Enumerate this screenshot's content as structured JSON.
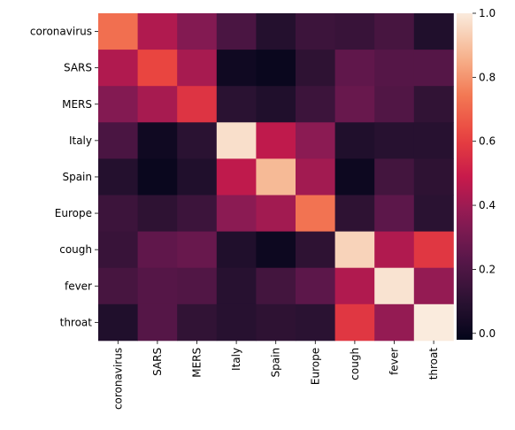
{
  "chart_data": {
    "type": "heatmap",
    "title": "",
    "xlabel": "",
    "ylabel": "",
    "x_labels": [
      "coronavirus",
      "SARS",
      "MERS",
      "Italy",
      "Spain",
      "Europe",
      "cough",
      "fever",
      "throat"
    ],
    "y_labels": [
      "coronavirus",
      "SARS",
      "MERS",
      "Italy",
      "Spain",
      "Europe",
      "cough",
      "fever",
      "throat"
    ],
    "values": [
      [
        0.72,
        0.44,
        0.34,
        0.19,
        0.08,
        0.15,
        0.14,
        0.18,
        0.07
      ],
      [
        0.44,
        0.62,
        0.42,
        0.02,
        0.0,
        0.11,
        0.25,
        0.22,
        0.22
      ],
      [
        0.34,
        0.42,
        0.57,
        0.1,
        0.07,
        0.15,
        0.27,
        0.21,
        0.12
      ],
      [
        0.19,
        0.02,
        0.1,
        0.97,
        0.47,
        0.36,
        0.07,
        0.09,
        0.09
      ],
      [
        0.08,
        0.0,
        0.07,
        0.47,
        0.88,
        0.41,
        0.01,
        0.17,
        0.11
      ],
      [
        0.15,
        0.11,
        0.15,
        0.36,
        0.41,
        0.73,
        0.11,
        0.24,
        0.1
      ],
      [
        0.14,
        0.25,
        0.27,
        0.07,
        0.01,
        0.11,
        0.94,
        0.44,
        0.58
      ],
      [
        0.18,
        0.22,
        0.21,
        0.09,
        0.17,
        0.24,
        0.44,
        0.98,
        0.38
      ],
      [
        0.07,
        0.22,
        0.12,
        0.09,
        0.11,
        0.1,
        0.58,
        0.38,
        1.0
      ]
    ],
    "colorbar": {
      "min": -0.02,
      "max": 1.0,
      "ticks": [
        "0.0",
        "0.2",
        "0.4",
        "0.6",
        "0.8",
        "1.0"
      ],
      "tick_values": [
        0.0,
        0.2,
        0.4,
        0.6,
        0.8,
        1.0
      ]
    },
    "colormap": "rocket",
    "grid": false,
    "legend": "colorbar-right"
  }
}
